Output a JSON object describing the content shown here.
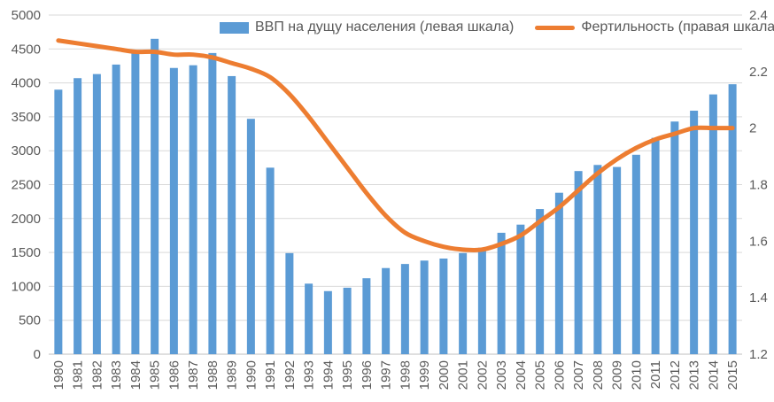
{
  "chart_data": {
    "type": "combo",
    "title": "",
    "categories": [
      "1980",
      "1981",
      "1982",
      "1983",
      "1984",
      "1985",
      "1986",
      "1987",
      "1988",
      "1989",
      "1990",
      "1991",
      "1992",
      "1993",
      "1994",
      "1995",
      "1996",
      "1997",
      "1998",
      "1999",
      "2000",
      "2001",
      "2002",
      "2003",
      "2004",
      "2005",
      "2006",
      "2007",
      "2008",
      "2009",
      "2010",
      "2011",
      "2012",
      "2013",
      "2014",
      "2015"
    ],
    "series": [
      {
        "name": "ВВП на дущу населения (левая шкала)",
        "type": "bar",
        "axis": "left",
        "color": "#5B9BD5",
        "values": [
          3900,
          4070,
          4130,
          4270,
          4450,
          4650,
          4220,
          4260,
          4440,
          4100,
          3470,
          2750,
          1490,
          1040,
          930,
          980,
          1120,
          1270,
          1330,
          1380,
          1410,
          1490,
          1570,
          1790,
          1910,
          2140,
          2380,
          2700,
          2790,
          2760,
          2940,
          3190,
          3430,
          3590,
          3830,
          3980
        ]
      },
      {
        "name": "Фертильность (правая шкала)",
        "type": "line",
        "axis": "right",
        "color": "#ED7D31",
        "values": [
          2.31,
          2.3,
          2.29,
          2.28,
          2.27,
          2.27,
          2.26,
          2.26,
          2.25,
          2.23,
          2.21,
          2.18,
          2.12,
          2.04,
          1.95,
          1.86,
          1.77,
          1.69,
          1.63,
          1.6,
          1.58,
          1.57,
          1.57,
          1.59,
          1.62,
          1.67,
          1.72,
          1.78,
          1.84,
          1.89,
          1.93,
          1.96,
          1.98,
          2.0,
          2.0,
          2.0
        ]
      }
    ],
    "left_axis": {
      "min": 0,
      "max": 5000,
      "step": 500,
      "tick_labels": [
        "0",
        "500",
        "1000",
        "1500",
        "2000",
        "2500",
        "3000",
        "3500",
        "4000",
        "4500",
        "5000"
      ]
    },
    "right_axis": {
      "min": 1.2,
      "max": 2.4,
      "step": 0.2,
      "tick_labels": [
        "1.2",
        "1.4",
        "1.6",
        "1.8",
        "2",
        "2.2",
        "2.4"
      ]
    },
    "grid": true,
    "legend_position": "top",
    "xlabel": "",
    "ylabel": ""
  },
  "colors": {
    "grid": "#D9D9D9",
    "axis_line": "#BFBFBF",
    "tick_text": "#595959"
  }
}
